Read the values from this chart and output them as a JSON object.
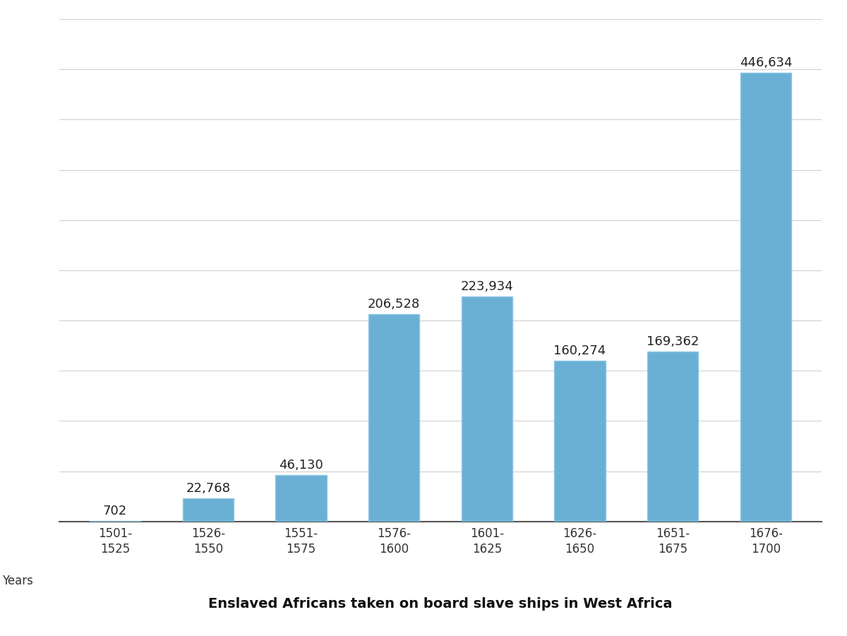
{
  "categories": [
    "1501-\n1525",
    "1526-\n1550",
    "1551-\n1575",
    "1576-\n1600",
    "1601-\n1625",
    "1626-\n1650",
    "1651-\n1675",
    "1676-\n1700"
  ],
  "values": [
    702,
    22768,
    46130,
    206528,
    223934,
    160274,
    169362,
    446634
  ],
  "bar_color": "#6ab0d4",
  "bar_edgecolor": "#8ec8e8",
  "title": "Enslaved Africans taken on board slave ships in West Africa",
  "xlabel": "Years",
  "ylim": [
    0,
    500000
  ],
  "grid_step": 50000,
  "title_fontsize": 14,
  "label_fontsize": 12,
  "tick_fontsize": 12,
  "value_fontsize": 13,
  "background_color": "#ffffff",
  "grid_color": "#d0d0d0"
}
